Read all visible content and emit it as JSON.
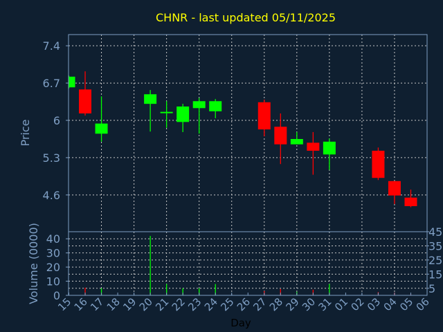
{
  "chart_data": [
    {
      "type": "candlestick",
      "title": "CHNR - last updated 05/11/2025",
      "ylabel": "Price",
      "ylim": [
        3.91,
        7.61
      ],
      "yticks": [
        "7.4",
        "6.7",
        "6",
        "5.3",
        "4.6"
      ],
      "ytick_values": [
        7.4,
        6.7,
        6.0,
        5.3,
        4.6
      ],
      "grid": true,
      "colors": {
        "up": "#00ff00",
        "down": "#ff0000",
        "background": "#0f1f30",
        "axis": "#7f9fc4",
        "title": "#ffff00",
        "grid": "#c8c8c8"
      },
      "candles": [
        {
          "day": "15",
          "open": 6.62,
          "high": 6.84,
          "low": 6.6,
          "close": 6.82
        },
        {
          "day": "16",
          "open": 6.58,
          "high": 6.92,
          "low": 6.09,
          "close": 6.13
        },
        {
          "day": "17",
          "open": 5.75,
          "high": 6.45,
          "low": 5.6,
          "close": 5.94
        },
        {
          "day": "20",
          "open": 6.31,
          "high": 6.57,
          "low": 5.79,
          "close": 6.49
        },
        {
          "day": "21",
          "open": 6.14,
          "high": 6.36,
          "low": 5.86,
          "close": 6.16
        },
        {
          "day": "22",
          "open": 5.97,
          "high": 6.31,
          "low": 5.78,
          "close": 6.26
        },
        {
          "day": "23",
          "open": 6.23,
          "high": 6.42,
          "low": 5.75,
          "close": 6.36
        },
        {
          "day": "24",
          "open": 6.17,
          "high": 6.4,
          "low": 6.04,
          "close": 6.36
        },
        {
          "day": "27",
          "open": 6.34,
          "high": 6.39,
          "low": 5.7,
          "close": 5.83
        },
        {
          "day": "28",
          "open": 5.88,
          "high": 6.13,
          "low": 5.18,
          "close": 5.55
        },
        {
          "day": "29",
          "open": 5.55,
          "high": 5.78,
          "low": 5.55,
          "close": 5.65
        },
        {
          "day": "30",
          "open": 5.58,
          "high": 5.78,
          "low": 4.98,
          "close": 5.43
        },
        {
          "day": "31",
          "open": 5.36,
          "high": 5.66,
          "low": 5.07,
          "close": 5.6
        },
        {
          "day": "03",
          "open": 5.43,
          "high": 5.49,
          "low": 4.88,
          "close": 4.92
        },
        {
          "day": "04",
          "open": 4.86,
          "high": 4.86,
          "low": 4.43,
          "close": 4.59
        },
        {
          "day": "05",
          "open": 4.55,
          "high": 4.7,
          "low": 4.37,
          "close": 4.39
        }
      ]
    },
    {
      "type": "bar",
      "ylabel": "Volume (0000)",
      "xlabel": "Day",
      "ylim": [
        0,
        45
      ],
      "yticks": [
        "0",
        "5",
        "10",
        "15",
        "20",
        "25",
        "30",
        "35",
        "40",
        "45"
      ],
      "ytick_values": [
        0,
        5,
        10,
        15,
        20,
        25,
        30,
        35,
        40,
        45
      ],
      "categories": [
        "15",
        "16",
        "17",
        "18",
        "19",
        "20",
        "21",
        "22",
        "23",
        "24",
        "25",
        "26",
        "27",
        "28",
        "29",
        "30",
        "31",
        "01",
        "02",
        "03",
        "04",
        "05",
        "06"
      ],
      "bars": [
        {
          "day": "16",
          "value": 5.4,
          "direction": "down"
        },
        {
          "day": "17",
          "value": 5,
          "direction": "up"
        },
        {
          "day": "20",
          "value": 42,
          "direction": "up"
        },
        {
          "day": "21",
          "value": 8,
          "direction": "up"
        },
        {
          "day": "22",
          "value": 5,
          "direction": "up"
        },
        {
          "day": "23",
          "value": 5,
          "direction": "up"
        },
        {
          "day": "24",
          "value": 8,
          "direction": "up"
        },
        {
          "day": "27",
          "value": 3,
          "direction": "down"
        },
        {
          "day": "28",
          "value": 4.5,
          "direction": "down"
        },
        {
          "day": "29",
          "value": 2.5,
          "direction": "up"
        },
        {
          "day": "30",
          "value": 4,
          "direction": "down"
        },
        {
          "day": "31",
          "value": 8,
          "direction": "up"
        },
        {
          "day": "03",
          "value": 2.3,
          "direction": "down"
        },
        {
          "day": "04",
          "value": 2,
          "direction": "down"
        },
        {
          "day": "05",
          "value": 0.7,
          "direction": "down"
        }
      ]
    }
  ]
}
